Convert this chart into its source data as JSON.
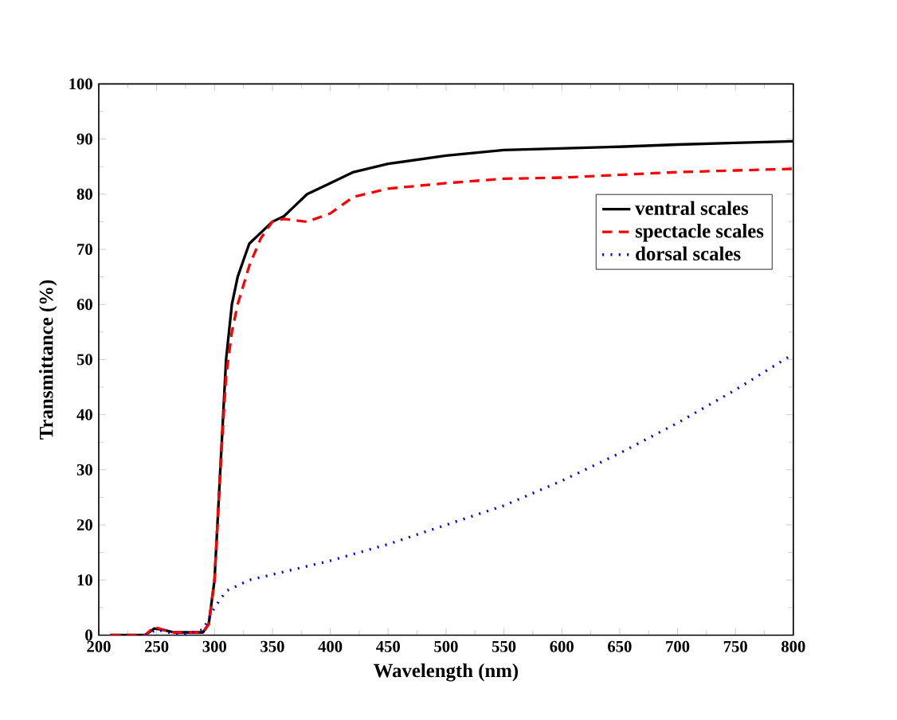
{
  "chart_data": {
    "type": "line",
    "xlabel": "Wavelength (nm)",
    "ylabel": "Transmittance (%)",
    "xlim": [
      200,
      800
    ],
    "ylim": [
      0,
      100
    ],
    "xticks": [
      200,
      250,
      300,
      350,
      400,
      450,
      500,
      550,
      600,
      650,
      700,
      750,
      800
    ],
    "yticks": [
      0,
      10,
      20,
      30,
      40,
      50,
      60,
      70,
      80,
      90,
      100
    ],
    "legend": "top right",
    "grid": false,
    "series": [
      {
        "name": "ventral scales",
        "color": "#000000",
        "line_style": "solid",
        "x": [
          210,
          240,
          248,
          255,
          265,
          290,
          295,
          300,
          305,
          310,
          315,
          320,
          325,
          330,
          340,
          350,
          360,
          370,
          380,
          400,
          420,
          450,
          500,
          550,
          600,
          650,
          700,
          750,
          800
        ],
        "values": [
          0,
          0,
          1.2,
          1,
          0.5,
          0.5,
          2,
          10,
          30,
          50,
          60,
          65,
          68,
          71,
          73,
          75,
          76,
          78,
          80,
          82,
          84,
          85.5,
          87,
          88,
          88.3,
          88.6,
          89,
          89.3,
          89.6
        ]
      },
      {
        "name": "spectacle scales",
        "color": "#ff0000",
        "line_style": "dashed",
        "x": [
          210,
          240,
          248,
          255,
          265,
          290,
          295,
          300,
          305,
          310,
          315,
          320,
          330,
          340,
          350,
          360,
          380,
          400,
          420,
          450,
          500,
          550,
          600,
          650,
          700,
          750,
          800
        ],
        "values": [
          0,
          0,
          1.5,
          1,
          0.5,
          0.5,
          2,
          10,
          30,
          47,
          55,
          60,
          67,
          72,
          75,
          75.5,
          75,
          76.5,
          79.5,
          81,
          82,
          82.8,
          83,
          83.5,
          84,
          84.3,
          84.6
        ]
      },
      {
        "name": "dorsal scales",
        "color": "#0000ff",
        "line_style": "dotted",
        "x": [
          240,
          250,
          260,
          270,
          290,
          300,
          310,
          330,
          350,
          380,
          400,
          450,
          500,
          550,
          600,
          650,
          700,
          750,
          800
        ],
        "values": [
          0,
          1,
          0.5,
          0,
          1,
          5,
          8,
          10,
          11,
          12.5,
          13.5,
          16.5,
          20,
          23.5,
          28,
          33,
          38.5,
          44.5,
          51
        ]
      }
    ]
  }
}
